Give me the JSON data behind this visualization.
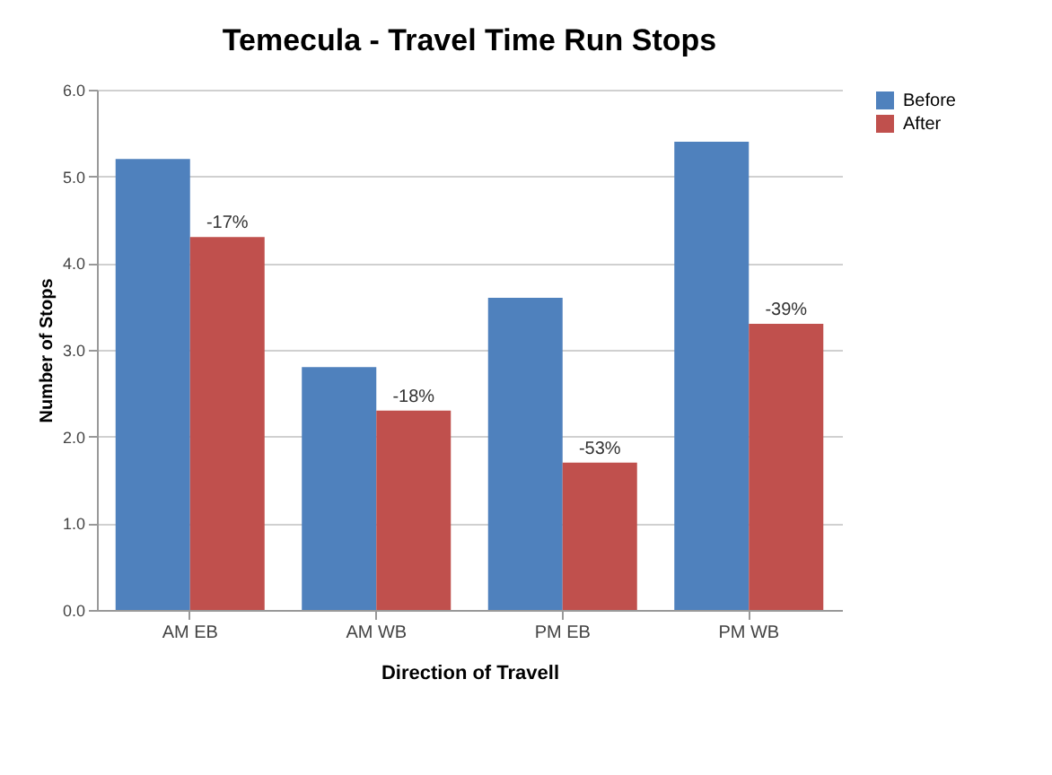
{
  "chart_data": {
    "type": "bar",
    "title": "Temecula - Travel Time Run Stops",
    "xlabel": "Direction of Travell",
    "ylabel": "Number of Stops",
    "categories": [
      "AM EB",
      "AM WB",
      "PM EB",
      "PM WB"
    ],
    "series": [
      {
        "name": "Before",
        "color": "#4f81bd",
        "values": [
          5.2,
          2.8,
          3.6,
          5.4
        ]
      },
      {
        "name": "After",
        "color": "#c0504d",
        "values": [
          4.3,
          2.3,
          1.7,
          3.3
        ]
      }
    ],
    "annotations": [
      {
        "text": "-17%",
        "x": "AM EB",
        "y": 4.3
      },
      {
        "text": "-18%",
        "x": "AM WB",
        "y": 2.3
      },
      {
        "text": "-53%",
        "x": "PM EB",
        "y": 1.7
      },
      {
        "text": "-39%",
        "x": "PM WB",
        "y": 3.3
      }
    ],
    "ylim": [
      0,
      6
    ],
    "yticks": [
      {
        "value": 0,
        "label": "0.0"
      },
      {
        "value": 1,
        "label": "1.0"
      },
      {
        "value": 2,
        "label": "2.0"
      },
      {
        "value": 3,
        "label": "3.0"
      },
      {
        "value": 4,
        "label": "4.0"
      },
      {
        "value": 5,
        "label": "5.0"
      },
      {
        "value": 6,
        "label": "6.0"
      }
    ],
    "grid": "y",
    "legend": "right"
  }
}
